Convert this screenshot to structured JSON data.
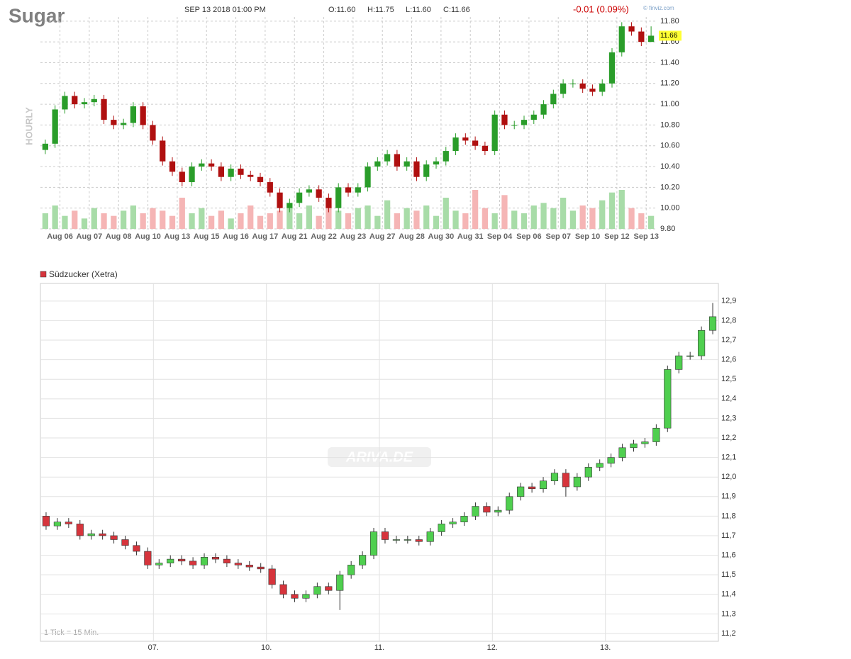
{
  "chart_data": [
    {
      "type": "candlestick",
      "title": "Sugar",
      "subtitle": "SEP 13 2018 01:00 PM",
      "quote": [
        "O:11.60",
        "H:11.75",
        "L:11.60",
        "C:11.66"
      ],
      "change": "-0.01 (0.09%)",
      "source": "© finviz.com",
      "y_label": "HOURLY",
      "last_price": 11.66,
      "categories": [
        "Aug 06",
        "Aug 07",
        "Aug 08",
        "Aug 10",
        "Aug 13",
        "Aug 15",
        "Aug 16",
        "Aug 17",
        "Aug 21",
        "Aug 22",
        "Aug 23",
        "Aug 27",
        "Aug 28",
        "Aug 30",
        "Aug 31",
        "Sep 04",
        "Sep 06",
        "Sep 07",
        "Sep 10",
        "Sep 12",
        "Sep 13"
      ],
      "open": [
        10.56,
        10.62,
        10.95,
        11.08,
        11.0,
        11.02,
        11.05,
        10.85,
        10.8,
        10.82,
        10.98,
        10.8,
        10.65,
        10.45,
        10.35,
        10.25,
        10.4,
        10.43,
        10.4,
        10.3,
        10.38,
        10.32,
        10.3,
        10.25,
        10.15,
        10.0,
        10.05,
        10.15,
        10.18,
        10.1,
        10.0,
        10.2,
        10.15,
        10.2,
        10.4,
        10.45,
        10.52,
        10.4,
        10.45,
        10.3,
        10.42,
        10.45,
        10.55,
        10.68,
        10.65,
        10.6,
        10.55,
        10.9,
        10.8,
        10.8,
        10.85,
        10.9,
        11.0,
        11.1,
        11.2,
        11.2,
        11.15,
        11.12,
        11.2,
        11.5,
        11.75,
        11.7,
        11.6
      ],
      "high": [
        10.66,
        10.99,
        11.12,
        11.12,
        11.06,
        11.09,
        11.09,
        10.89,
        10.86,
        11.02,
        11.02,
        10.84,
        10.69,
        10.49,
        10.39,
        10.44,
        10.47,
        10.47,
        10.44,
        10.42,
        10.42,
        10.36,
        10.34,
        10.29,
        10.19,
        10.09,
        10.19,
        10.22,
        10.22,
        10.14,
        10.24,
        10.24,
        10.24,
        10.44,
        10.49,
        10.56,
        10.56,
        10.49,
        10.49,
        10.46,
        10.49,
        10.59,
        10.72,
        10.72,
        10.69,
        10.64,
        10.94,
        10.94,
        10.84,
        10.89,
        10.94,
        11.04,
        11.14,
        11.24,
        11.24,
        11.24,
        11.19,
        11.24,
        11.54,
        11.79,
        11.79,
        11.74,
        11.75
      ],
      "low": [
        10.52,
        10.58,
        10.91,
        10.96,
        10.96,
        10.98,
        10.81,
        10.76,
        10.76,
        10.78,
        10.76,
        10.61,
        10.41,
        10.31,
        10.21,
        10.21,
        10.36,
        10.36,
        10.26,
        10.26,
        10.28,
        10.26,
        10.21,
        10.11,
        9.96,
        9.96,
        10.01,
        10.11,
        10.06,
        9.96,
        9.96,
        10.11,
        10.11,
        10.16,
        10.36,
        10.41,
        10.36,
        10.36,
        10.26,
        10.26,
        10.38,
        10.41,
        10.51,
        10.61,
        10.56,
        10.51,
        10.51,
        10.76,
        10.76,
        10.76,
        10.81,
        10.86,
        10.96,
        11.06,
        11.16,
        11.11,
        11.08,
        11.08,
        11.16,
        11.46,
        11.66,
        11.56,
        11.6
      ],
      "close": [
        10.62,
        10.95,
        11.08,
        11.0,
        11.02,
        11.05,
        10.85,
        10.8,
        10.82,
        10.98,
        10.8,
        10.65,
        10.45,
        10.35,
        10.25,
        10.4,
        10.43,
        10.4,
        10.3,
        10.38,
        10.32,
        10.3,
        10.25,
        10.15,
        10.0,
        10.05,
        10.15,
        10.18,
        10.1,
        10.0,
        10.2,
        10.15,
        10.2,
        10.4,
        10.45,
        10.52,
        10.4,
        10.45,
        10.3,
        10.42,
        10.45,
        10.55,
        10.68,
        10.65,
        10.6,
        10.55,
        10.9,
        10.8,
        10.8,
        10.85,
        10.9,
        11.0,
        11.1,
        11.2,
        11.2,
        11.15,
        11.12,
        11.2,
        11.5,
        11.75,
        11.7,
        11.6,
        11.66
      ],
      "volume": [
        30,
        45,
        25,
        35,
        20,
        40,
        30,
        25,
        35,
        45,
        30,
        40,
        35,
        25,
        60,
        30,
        40,
        25,
        35,
        20,
        30,
        45,
        25,
        30,
        35,
        40,
        30,
        45,
        25,
        50,
        35,
        30,
        40,
        45,
        25,
        55,
        30,
        40,
        35,
        45,
        25,
        60,
        35,
        30,
        75,
        40,
        30,
        65,
        35,
        30,
        45,
        50,
        40,
        60,
        35,
        45,
        40,
        55,
        70,
        75,
        40,
        30,
        25
      ],
      "up_color": "#2a9d2a",
      "down_color": "#b01010",
      "volume_up_color": "#a8dca8",
      "volume_down_color": "#f5b5b5",
      "ylim": [
        9.8,
        11.84
      ],
      "yticks": [
        {
          "value": 9.8,
          "label": "9.80"
        },
        {
          "value": 10.0,
          "label": "10.00"
        },
        {
          "value": 10.2,
          "label": "10.20"
        },
        {
          "value": 10.4,
          "label": "10.40"
        },
        {
          "value": 10.6,
          "label": "10.60"
        },
        {
          "value": 10.8,
          "label": "10.80"
        },
        {
          "value": 11.0,
          "label": "11.00"
        },
        {
          "value": 11.2,
          "label": "11.20"
        },
        {
          "value": 11.4,
          "label": "11.40"
        },
        {
          "value": 11.6,
          "label": "11.60"
        },
        {
          "value": 11.8,
          "label": "11.80"
        }
      ],
      "grid": true
    },
    {
      "type": "candlestick",
      "legend": "Südzucker (Xetra)",
      "note": "1 Tick = 15 Min.",
      "watermark": "ARIVA.DE",
      "categories": [
        null,
        "07.",
        "10.",
        "11.",
        "12.",
        "13."
      ],
      "open": [
        11.8,
        11.75,
        11.77,
        11.76,
        11.7,
        11.71,
        11.7,
        11.68,
        11.65,
        11.62,
        11.55,
        11.56,
        11.58,
        11.57,
        11.55,
        11.59,
        11.58,
        11.56,
        11.55,
        11.54,
        11.53,
        11.45,
        11.4,
        11.38,
        11.4,
        11.44,
        11.42,
        11.5,
        11.55,
        11.6,
        11.72,
        11.68,
        11.68,
        11.68,
        11.67,
        11.72,
        11.76,
        11.77,
        11.8,
        11.85,
        11.82,
        11.83,
        11.9,
        11.95,
        11.94,
        11.98,
        12.02,
        11.95,
        12.0,
        12.05,
        12.07,
        12.1,
        12.15,
        12.17,
        12.18,
        12.25,
        12.55,
        12.62,
        12.62,
        12.75
      ],
      "high": [
        11.82,
        11.79,
        11.79,
        11.78,
        11.73,
        11.73,
        11.72,
        11.7,
        11.67,
        11.64,
        11.58,
        11.6,
        11.6,
        11.59,
        11.61,
        11.61,
        11.6,
        11.58,
        11.57,
        11.56,
        11.55,
        11.47,
        11.42,
        11.42,
        11.46,
        11.46,
        11.52,
        11.57,
        11.62,
        11.74,
        11.74,
        11.7,
        11.7,
        11.7,
        11.74,
        11.78,
        11.79,
        11.82,
        11.87,
        11.87,
        11.85,
        11.92,
        11.97,
        11.97,
        12.0,
        12.04,
        12.04,
        12.02,
        12.07,
        12.09,
        12.12,
        12.17,
        12.19,
        12.2,
        12.27,
        12.57,
        12.64,
        12.64,
        12.77,
        12.89
      ],
      "low": [
        11.73,
        11.73,
        11.74,
        11.68,
        11.68,
        11.68,
        11.66,
        11.63,
        11.6,
        11.53,
        11.53,
        11.54,
        11.55,
        11.53,
        11.53,
        11.56,
        11.54,
        11.53,
        11.52,
        11.51,
        11.43,
        11.38,
        11.36,
        11.36,
        11.38,
        11.4,
        11.32,
        11.48,
        11.53,
        11.58,
        11.66,
        11.66,
        11.66,
        11.65,
        11.65,
        11.7,
        11.74,
        11.75,
        11.78,
        11.8,
        11.8,
        11.81,
        11.88,
        11.92,
        11.92,
        11.96,
        11.9,
        11.93,
        11.98,
        12.03,
        12.05,
        12.08,
        12.13,
        12.15,
        12.16,
        12.23,
        12.53,
        12.6,
        12.6,
        12.73
      ],
      "close": [
        11.75,
        11.77,
        11.76,
        11.7,
        11.71,
        11.7,
        11.68,
        11.65,
        11.62,
        11.55,
        11.56,
        11.58,
        11.57,
        11.55,
        11.59,
        11.58,
        11.56,
        11.55,
        11.54,
        11.53,
        11.45,
        11.4,
        11.38,
        11.4,
        11.44,
        11.42,
        11.5,
        11.55,
        11.6,
        11.72,
        11.68,
        11.68,
        11.68,
        11.67,
        11.72,
        11.76,
        11.77,
        11.8,
        11.85,
        11.82,
        11.83,
        11.9,
        11.95,
        11.94,
        11.98,
        12.02,
        11.95,
        12.0,
        12.05,
        12.07,
        12.1,
        12.15,
        12.17,
        12.18,
        12.25,
        12.55,
        12.62,
        12.62,
        12.75,
        12.82
      ],
      "up_color": "#4fcf4f",
      "down_color": "#d6343c",
      "ylim": [
        11.16,
        12.99
      ],
      "yticks": [
        {
          "value": 11.2,
          "label": "11,2"
        },
        {
          "value": 11.3,
          "label": "11,3"
        },
        {
          "value": 11.4,
          "label": "11,4"
        },
        {
          "value": 11.5,
          "label": "11,5"
        },
        {
          "value": 11.6,
          "label": "11,6"
        },
        {
          "value": 11.7,
          "label": "11,7"
        },
        {
          "value": 11.8,
          "label": "11,8"
        },
        {
          "value": 11.9,
          "label": "11,9"
        },
        {
          "value": 12.0,
          "label": "12,0"
        },
        {
          "value": 12.1,
          "label": "12,1"
        },
        {
          "value": 12.2,
          "label": "12,2"
        },
        {
          "value": 12.3,
          "label": "12,3"
        },
        {
          "value": 12.4,
          "label": "12,4"
        },
        {
          "value": 12.5,
          "label": "12,5"
        },
        {
          "value": 12.6,
          "label": "12,6"
        },
        {
          "value": 12.7,
          "label": "12,7"
        },
        {
          "value": 12.8,
          "label": "12,8"
        },
        {
          "value": 12.9,
          "label": "12,9"
        }
      ],
      "grid": true
    }
  ]
}
